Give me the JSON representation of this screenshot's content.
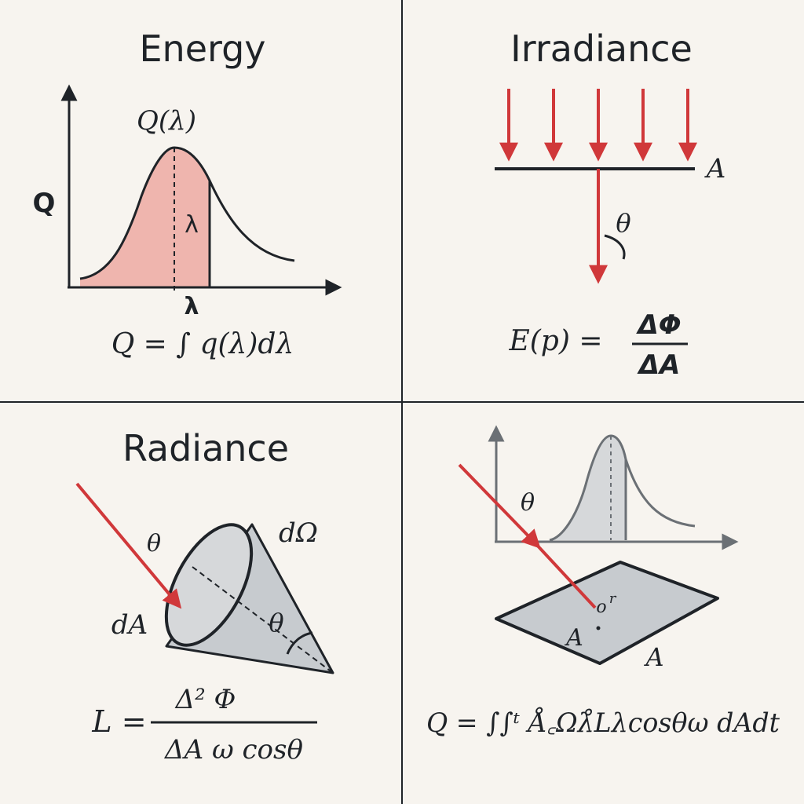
{
  "panels": {
    "energy": {
      "title": "Energy",
      "curve_label": "Q(λ)",
      "y_axis_label": "Q",
      "x_axis_label": "λ",
      "inner_label": "λ",
      "formula": "Q = ∫ q(λ)dλ"
    },
    "irradiance": {
      "title": "Irradiance",
      "surface_label": "A",
      "angle_label": "θ",
      "formula_lhs": "E(p) =",
      "formula_num": "ΔΦ",
      "formula_den": "ΔA"
    },
    "radiance": {
      "title": "Radiance",
      "solid_angle_label": "dΩ",
      "incident_angle_label": "θ",
      "area_label": "dA",
      "cone_angle_label": "θ",
      "formula_lhs": "L =",
      "formula_num": "Δ² Φ",
      "formula_den": "ΔA ω cosθ"
    },
    "combined": {
      "angle_label": "θ",
      "point_label": "o",
      "point_sup": "r",
      "inner_area_label": "A",
      "area_label": "A",
      "formula": "Q = ∫∫ᵗ Å꜀Ωλ̊Lλcosθω dAdt"
    }
  },
  "colors": {
    "background": "#f7f4ef",
    "ink": "#1f2328",
    "red": "#d0383a",
    "pink_fill": "#efb5ae",
    "gray_fill": "#c7cbcf",
    "light_gray_fill": "#d6d8da",
    "axis_gray": "#6b7075"
  },
  "icons": {
    "incident_ray": "red-arrow-icon",
    "cone": "cone-icon"
  }
}
